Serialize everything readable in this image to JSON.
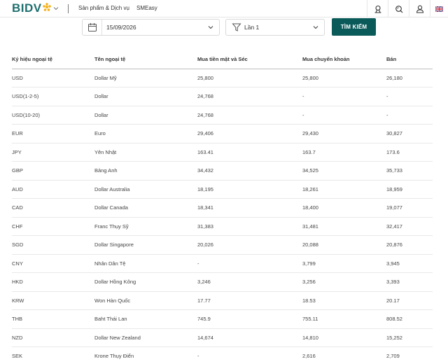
{
  "brand": {
    "logo_text": "BIDV",
    "accent": "#f5b21a",
    "primary": "#0b5a5a"
  },
  "header": {
    "nav": [
      {
        "label": "Sản phẩm & Dịch vụ"
      },
      {
        "label": "SMEasy"
      }
    ],
    "icons": [
      "branch-locator-icon",
      "search-icon",
      "user-icon",
      "uk-flag-icon"
    ]
  },
  "filters": {
    "date_value": "15/09/2026",
    "round_value": "Lần 1",
    "search_button": "TÌM KIẾM"
  },
  "table": {
    "headers": [
      "Ký hiệu ngoại tệ",
      "Tên ngoại tệ",
      "Mua tiền mặt và Séc",
      "Mua chuyển khoản",
      "Bán"
    ],
    "rows": [
      [
        "USD",
        "Dollar Mỹ",
        "25,800",
        "25,800",
        "26,180"
      ],
      [
        "USD(1-2-5)",
        "Dollar",
        "24,768",
        "-",
        "-"
      ],
      [
        "USD(10-20)",
        "Dollar",
        "24,768",
        "-",
        "-"
      ],
      [
        "EUR",
        "Euro",
        "29,406",
        "29,430",
        "30,827"
      ],
      [
        "JPY",
        "Yên Nhật",
        "163.41",
        "163.7",
        "173.6"
      ],
      [
        "GBP",
        "Bảng Anh",
        "34,432",
        "34,525",
        "35,733"
      ],
      [
        "AUD",
        "Dollar Australia",
        "18,195",
        "18,261",
        "18,959"
      ],
      [
        "CAD",
        "Dollar Canada",
        "18,341",
        "18,400",
        "19,077"
      ],
      [
        "CHF",
        "Franc Thụy Sỹ",
        "31,383",
        "31,481",
        "32,417"
      ],
      [
        "SGD",
        "Dollar Singapore",
        "20,026",
        "20,088",
        "20,876"
      ],
      [
        "CNY",
        "Nhân Dân Tệ",
        "-",
        "3,799",
        "3,945"
      ],
      [
        "HKD",
        "Dollar Hồng Kông",
        "3,246",
        "3,256",
        "3,393"
      ],
      [
        "KRW",
        "Won Hàn Quốc",
        "17.77",
        "18.53",
        "20.17"
      ],
      [
        "THB",
        "Baht Thái Lan",
        "745.9",
        "755.11",
        "808.52"
      ],
      [
        "NZD",
        "Dollar New Zealand",
        "14,674",
        "14,810",
        "15,252"
      ],
      [
        "SEK",
        "Krone Thụy Điển",
        "-",
        "2,616",
        "2,709"
      ]
    ]
  }
}
